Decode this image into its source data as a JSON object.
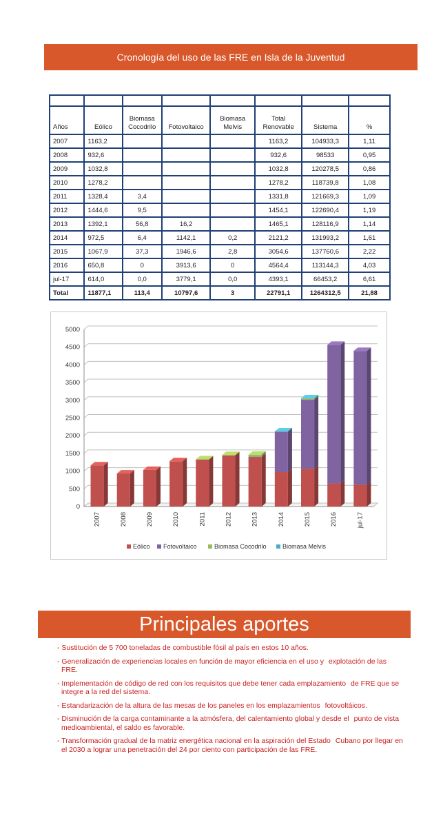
{
  "title": "Cronología del uso de las FRE en Isla de la Juventud",
  "table": {
    "headers": [
      "Años",
      "Eólico",
      "Biomasa Cocodrilo",
      "Fotovoltaico",
      "Biomasa Melvis",
      "Total Renovable",
      "Sistema",
      "%"
    ],
    "rows": [
      [
        "2007",
        "1163,2",
        "",
        "",
        "",
        "1163,2",
        "104933,3",
        "1,11"
      ],
      [
        "2008",
        "932,6",
        "",
        "",
        "",
        "932,6",
        "98533",
        "0,95"
      ],
      [
        "2009",
        "1032,8",
        "",
        "",
        "",
        "1032,8",
        "120278,5",
        "0,86"
      ],
      [
        "2010",
        "1278,2",
        "",
        "",
        "",
        "1278,2",
        "118739,8",
        "1,08"
      ],
      [
        "2011",
        "1328,4",
        "3,4",
        "",
        "",
        "1331,8",
        "121669,3",
        "1,09"
      ],
      [
        "2012",
        "1444,6",
        "9,5",
        "",
        "",
        "1454,1",
        "122690,4",
        "1,19"
      ],
      [
        "2013",
        "1392,1",
        "56,8",
        "16,2",
        "",
        "1465,1",
        "128116,9",
        "1,14"
      ],
      [
        "2014",
        "972,5",
        "6,4",
        "1142,1",
        "0,2",
        "2121,2",
        "131993,2",
        "1,61"
      ],
      [
        "2015",
        "1067,9",
        "37,3",
        "1946,6",
        "2,8",
        "3054,6",
        "137760,6",
        "2,22"
      ],
      [
        "2016",
        "650,8",
        "0",
        "3913,6",
        "0",
        "4564,4",
        "113144,3",
        "4,03"
      ],
      [
        "jul-17",
        "614,0",
        "0,0",
        "3779,1",
        "0,0",
        "4393,1",
        "66453,2",
        "6,61"
      ]
    ],
    "total": [
      "Total",
      "11877,1",
      "113,4",
      "10797,6",
      "3",
      "22791,1",
      "1264312,5",
      "21,88"
    ]
  },
  "chart_data": {
    "type": "bar",
    "stacked": true,
    "categories": [
      "2007",
      "2008",
      "2009",
      "2010",
      "2011",
      "2012",
      "2013",
      "2014",
      "2015",
      "2016",
      "jul-17"
    ],
    "series": [
      {
        "name": "Eólico",
        "color": "#c0504d",
        "values": [
          1163.2,
          932.6,
          1032.8,
          1278.2,
          1328.4,
          1444.6,
          1392.1,
          972.5,
          1067.9,
          650.8,
          614.0
        ]
      },
      {
        "name": "Fotovoltaico",
        "color": "#8064a2",
        "values": [
          0,
          0,
          0,
          0,
          0,
          0,
          16.2,
          1142.1,
          1946.6,
          3913.6,
          3779.1
        ]
      },
      {
        "name": "Biomasa Cocodrilo",
        "color": "#9bbb59",
        "values": [
          0,
          0,
          0,
          0,
          3.4,
          9.5,
          56.8,
          6.4,
          37.3,
          0,
          0
        ]
      },
      {
        "name": "Biomasa Melvis",
        "color": "#4bacc6",
        "values": [
          0,
          0,
          0,
          0,
          0,
          0,
          0,
          0.2,
          2.8,
          0,
          0
        ]
      }
    ],
    "ylim": [
      0,
      5000
    ],
    "yticks": [
      0,
      500,
      1000,
      1500,
      2000,
      2500,
      3000,
      3500,
      4000,
      4500,
      5000
    ],
    "legend": "bottom",
    "grid": true
  },
  "section2": {
    "title": "Principales aportes",
    "bullets": [
      {
        "first": "- Sustitución de 5 700 toneladas de combustible fósil al país en estos 10 años.",
        "rest": ""
      },
      {
        "first": "- Generalización de experiencias locales en función de mayor eficiencia en el uso y",
        "rest": "explotación de las  FRE."
      },
      {
        "first": "- Implementación de código de red con los requisitos que debe tener cada emplazamiento",
        "rest": "de FRE que se integre a la red del sistema."
      },
      {
        "first": "- Estandarización de la altura de las mesas de los paneles en los emplazamientos",
        "rest": "fotovoltáicos."
      },
      {
        "first": "- Disminución de la carga contaminante a la atmósfera, del calentamiento global y desde el",
        "rest": "punto de vista medioambiental, el saldo es favorable."
      },
      {
        "first": "- Transformación gradual de la matriz energética nacional en la aspiración del Estado",
        "rest": "Cubano por llegar en el 2030 a lograr una penetración del 24 por ciento con participación de las FRE."
      }
    ]
  }
}
